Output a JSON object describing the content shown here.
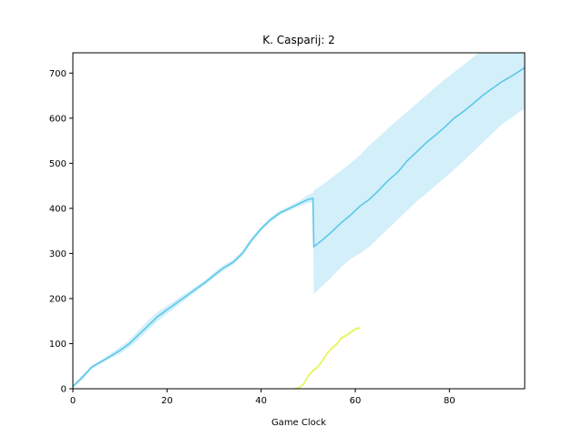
{
  "chart_data": {
    "type": "line",
    "title": "K. Casparij: 2",
    "xlabel": "Game Clock",
    "ylabel": "",
    "xlim": [
      0,
      96
    ],
    "ylim": [
      0,
      745
    ],
    "xticks": [
      0,
      20,
      40,
      60,
      80
    ],
    "yticks": [
      0,
      100,
      200,
      300,
      400,
      500,
      600,
      700
    ],
    "grid": false,
    "series": [
      {
        "color": "#5bc8e8",
        "band_color": "#a8e0f5",
        "x": [
          0,
          2,
          4,
          6,
          8,
          10,
          12,
          14,
          16,
          18,
          20,
          22,
          24,
          26,
          28,
          30,
          32,
          34,
          36,
          38,
          40,
          42,
          44,
          46,
          48,
          50,
          51,
          51.2,
          53,
          55,
          57,
          59,
          61,
          63,
          65,
          67,
          69,
          71,
          73,
          75,
          77,
          79,
          81,
          83,
          85,
          87,
          89,
          91,
          93,
          95,
          96
        ],
        "values": [
          5,
          25,
          48,
          60,
          72,
          85,
          100,
          120,
          140,
          160,
          175,
          190,
          205,
          220,
          235,
          252,
          268,
          280,
          300,
          330,
          355,
          375,
          390,
          400,
          410,
          420,
          422,
          315,
          330,
          348,
          368,
          385,
          405,
          420,
          440,
          462,
          480,
          505,
          525,
          545,
          562,
          580,
          600,
          615,
          632,
          650,
          665,
          680,
          692,
          705,
          712
        ],
        "lower": [
          2,
          20,
          44,
          56,
          67,
          78,
          92,
          110,
          130,
          150,
          166,
          182,
          198,
          214,
          230,
          246,
          262,
          275,
          294,
          324,
          350,
          370,
          385,
          395,
          404,
          412,
          414,
          210,
          228,
          248,
          270,
          288,
          300,
          315,
          335,
          355,
          375,
          395,
          415,
          432,
          450,
          468,
          486,
          505,
          525,
          545,
          565,
          585,
          600,
          615,
          620
        ],
        "upper": [
          8,
          30,
          52,
          64,
          78,
          92,
          108,
          130,
          152,
          170,
          184,
          198,
          212,
          226,
          240,
          258,
          274,
          286,
          306,
          336,
          360,
          380,
          395,
          405,
          416,
          430,
          435,
          440,
          452,
          468,
          484,
          500,
          518,
          540,
          558,
          578,
          596,
          614,
          632,
          650,
          668,
          686,
          702,
          718,
          735,
          752,
          768,
          780,
          780,
          780,
          780
        ]
      },
      {
        "color": "#e8f55a",
        "band_color": "#f2f8a8",
        "x": [
          47,
          48,
          49,
          50,
          51,
          52,
          53,
          54,
          55,
          56,
          57,
          58,
          59,
          60,
          61
        ],
        "values": [
          0,
          2,
          10,
          28,
          40,
          48,
          62,
          78,
          90,
          98,
          112,
          118,
          125,
          132,
          135
        ],
        "lower": [
          0,
          0,
          7,
          24,
          36,
          44,
          58,
          74,
          86,
          94,
          108,
          114,
          121,
          128,
          131
        ],
        "upper": [
          1,
          4,
          13,
          32,
          44,
          52,
          66,
          82,
          94,
          102,
          116,
          122,
          129,
          136,
          139
        ]
      }
    ]
  }
}
